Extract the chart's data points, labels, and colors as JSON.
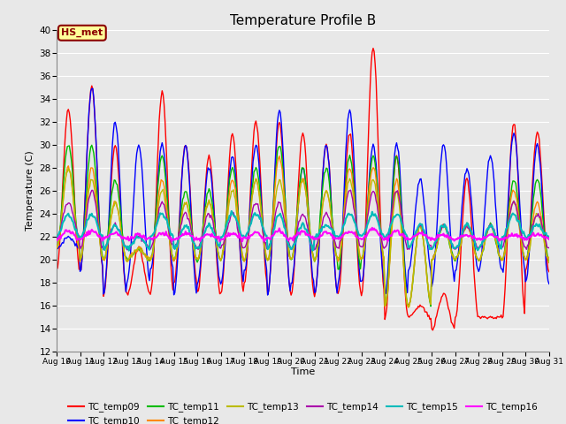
{
  "title": "Temperature Profile B",
  "xlabel": "Time",
  "ylabel": "Temperature (C)",
  "ylim": [
    12,
    40
  ],
  "yticks": [
    12,
    14,
    16,
    18,
    20,
    22,
    24,
    26,
    28,
    30,
    32,
    34,
    36,
    38,
    40
  ],
  "x_labels": [
    "Aug 10",
    "Aug 11",
    "Aug 12",
    "Aug 13",
    "Aug 14",
    "Aug 15",
    "Aug 16",
    "Aug 17",
    "Aug 18",
    "Aug 19",
    "Aug 20",
    "Aug 21",
    "Aug 22",
    "Aug 23",
    "Aug 24",
    "Aug 25",
    "Aug 26",
    "Aug 27",
    "Aug 28",
    "Aug 29",
    "Aug 30",
    "Aug 31"
  ],
  "series_names": [
    "TC_temp09",
    "TC_temp10",
    "TC_temp11",
    "TC_temp12",
    "TC_temp13",
    "TC_temp14",
    "TC_temp15",
    "TC_temp16"
  ],
  "series_colors": [
    "#FF0000",
    "#0000FF",
    "#00BB00",
    "#FF8800",
    "#BBBB00",
    "#AA00AA",
    "#00BBBB",
    "#FF00FF"
  ],
  "annotation_text": "HS_met",
  "bg_color": "#E8E8E8",
  "grid_color": "#FFFFFF",
  "title_fontsize": 11,
  "label_fontsize": 8,
  "tick_fontsize": 7.5
}
